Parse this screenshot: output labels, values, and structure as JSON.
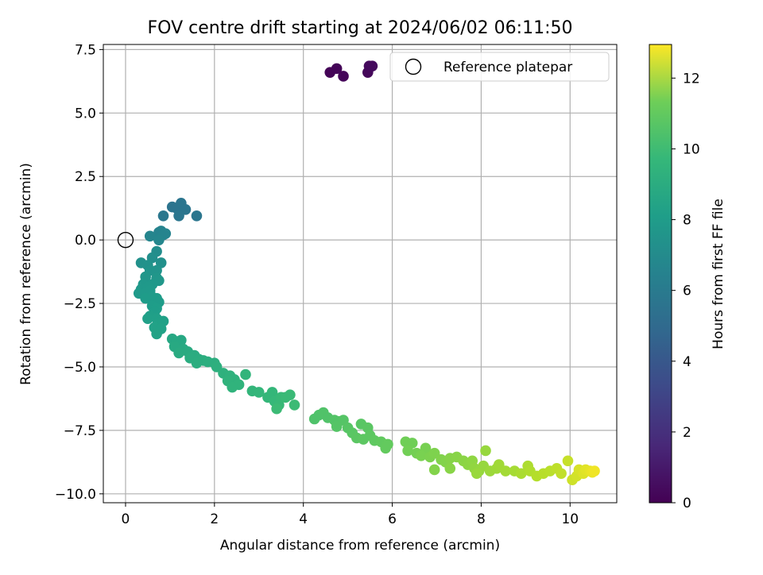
{
  "chart_data": {
    "type": "scatter",
    "title": "FOV centre drift starting at 2024/06/02 06:11:50",
    "xlabel": "Angular distance from reference (arcmin)",
    "ylabel": "Rotation from reference (arcmin)",
    "xlim": [
      -0.5,
      11.05
    ],
    "ylim": [
      -10.35,
      7.7
    ],
    "xticks": [
      0,
      2,
      4,
      6,
      8,
      10
    ],
    "xtick_labels": [
      "0",
      "2",
      "4",
      "6",
      "8",
      "10"
    ],
    "yticks": [
      -10.0,
      -7.5,
      -5.0,
      -2.5,
      0.0,
      2.5,
      5.0,
      7.5
    ],
    "ytick_labels": [
      "−10.0",
      "−7.5",
      "−5.0",
      "−2.5",
      "0.0",
      "2.5",
      "5.0",
      "7.5"
    ],
    "grid": true,
    "legend": {
      "placement": "top-right",
      "entries": [
        "Reference platepar"
      ]
    },
    "reference_point": {
      "x": 0,
      "y": 0,
      "label": "Reference platepar"
    },
    "colorbar": {
      "label": "Hours from first FF file",
      "colormap": "viridis",
      "range": [
        0,
        12.95
      ],
      "ticks": [
        0,
        2,
        4,
        6,
        8,
        10,
        12
      ],
      "tick_labels": [
        "0",
        "2",
        "4",
        "6",
        "8",
        "10",
        "12"
      ]
    },
    "points": [
      {
        "x": 4.6,
        "y": 6.6,
        "t": 0.1
      },
      {
        "x": 4.75,
        "y": 6.75,
        "t": 0.15
      },
      {
        "x": 4.9,
        "y": 6.45,
        "t": 0.2
      },
      {
        "x": 5.45,
        "y": 6.6,
        "t": 0.25
      },
      {
        "x": 5.48,
        "y": 6.85,
        "t": 0.3
      },
      {
        "x": 5.55,
        "y": 6.85,
        "t": 0.35
      },
      {
        "x": 1.05,
        "y": 1.3,
        "t": 5.0
      },
      {
        "x": 1.15,
        "y": 1.25,
        "t": 5.0
      },
      {
        "x": 1.25,
        "y": 1.45,
        "t": 5.05
      },
      {
        "x": 1.35,
        "y": 1.2,
        "t": 5.05
      },
      {
        "x": 1.2,
        "y": 0.95,
        "t": 5.1
      },
      {
        "x": 1.6,
        "y": 0.95,
        "t": 5.1
      },
      {
        "x": 0.85,
        "y": 0.95,
        "t": 5.15
      },
      {
        "x": 0.75,
        "y": 0.3,
        "t": 5.8
      },
      {
        "x": 0.8,
        "y": 0.35,
        "t": 5.8
      },
      {
        "x": 0.85,
        "y": 0.2,
        "t": 5.85
      },
      {
        "x": 0.9,
        "y": 0.25,
        "t": 5.85
      },
      {
        "x": 0.55,
        "y": 0.15,
        "t": 5.9
      },
      {
        "x": 0.75,
        "y": 0.0,
        "t": 5.95
      },
      {
        "x": 0.7,
        "y": -0.45,
        "t": 6.3
      },
      {
        "x": 0.6,
        "y": -0.7,
        "t": 6.4
      },
      {
        "x": 0.8,
        "y": -0.9,
        "t": 6.5
      },
      {
        "x": 0.35,
        "y": -0.9,
        "t": 6.55
      },
      {
        "x": 0.5,
        "y": -1.0,
        "t": 6.6
      },
      {
        "x": 0.55,
        "y": -1.2,
        "t": 6.7
      },
      {
        "x": 0.7,
        "y": -1.2,
        "t": 6.7
      },
      {
        "x": 0.45,
        "y": -1.45,
        "t": 6.8
      },
      {
        "x": 0.7,
        "y": -1.5,
        "t": 6.8
      },
      {
        "x": 0.75,
        "y": -1.6,
        "t": 6.85
      },
      {
        "x": 0.4,
        "y": -1.75,
        "t": 6.9
      },
      {
        "x": 0.6,
        "y": -1.75,
        "t": 6.9
      },
      {
        "x": 0.35,
        "y": -1.95,
        "t": 6.95
      },
      {
        "x": 0.5,
        "y": -1.85,
        "t": 6.95
      },
      {
        "x": 0.3,
        "y": -2.1,
        "t": 7.0
      },
      {
        "x": 0.45,
        "y": -2.1,
        "t": 7.0
      },
      {
        "x": 0.55,
        "y": -2.0,
        "t": 7.0
      },
      {
        "x": 0.6,
        "y": -2.25,
        "t": 7.05
      },
      {
        "x": 0.7,
        "y": -2.3,
        "t": 7.1
      },
      {
        "x": 0.75,
        "y": -2.45,
        "t": 7.1
      },
      {
        "x": 0.45,
        "y": -2.3,
        "t": 7.1
      },
      {
        "x": 0.6,
        "y": -2.6,
        "t": 7.15
      },
      {
        "x": 0.7,
        "y": -2.7,
        "t": 7.2
      },
      {
        "x": 0.65,
        "y": -2.85,
        "t": 7.2
      },
      {
        "x": 0.55,
        "y": -3.0,
        "t": 7.25
      },
      {
        "x": 0.5,
        "y": -3.1,
        "t": 7.3
      },
      {
        "x": 0.7,
        "y": -3.1,
        "t": 7.3
      },
      {
        "x": 0.75,
        "y": -3.25,
        "t": 7.35
      },
      {
        "x": 0.85,
        "y": -3.2,
        "t": 7.35
      },
      {
        "x": 0.65,
        "y": -3.45,
        "t": 7.4
      },
      {
        "x": 0.8,
        "y": -3.5,
        "t": 7.4
      },
      {
        "x": 0.7,
        "y": -3.7,
        "t": 7.45
      },
      {
        "x": 1.05,
        "y": -3.9,
        "t": 7.7
      },
      {
        "x": 1.15,
        "y": -4.0,
        "t": 7.75
      },
      {
        "x": 1.25,
        "y": -3.95,
        "t": 7.75
      },
      {
        "x": 1.1,
        "y": -4.2,
        "t": 7.8
      },
      {
        "x": 1.3,
        "y": -4.3,
        "t": 7.85
      },
      {
        "x": 1.2,
        "y": -4.45,
        "t": 7.9
      },
      {
        "x": 1.4,
        "y": -4.4,
        "t": 7.9
      },
      {
        "x": 1.55,
        "y": -4.55,
        "t": 7.95
      },
      {
        "x": 1.45,
        "y": -4.65,
        "t": 8.0
      },
      {
        "x": 1.65,
        "y": -4.7,
        "t": 8.0
      },
      {
        "x": 1.6,
        "y": -4.85,
        "t": 8.05
      },
      {
        "x": 1.75,
        "y": -4.75,
        "t": 8.05
      },
      {
        "x": 1.85,
        "y": -4.8,
        "t": 8.1
      },
      {
        "x": 2.0,
        "y": -4.85,
        "t": 8.1
      },
      {
        "x": 2.05,
        "y": -5.0,
        "t": 8.15
      },
      {
        "x": 2.2,
        "y": -5.25,
        "t": 8.25
      },
      {
        "x": 2.35,
        "y": -5.35,
        "t": 8.3
      },
      {
        "x": 2.45,
        "y": -5.5,
        "t": 8.3
      },
      {
        "x": 2.3,
        "y": -5.55,
        "t": 8.35
      },
      {
        "x": 2.55,
        "y": -5.7,
        "t": 8.4
      },
      {
        "x": 2.4,
        "y": -5.8,
        "t": 8.4
      },
      {
        "x": 2.7,
        "y": -5.3,
        "t": 8.45
      },
      {
        "x": 2.85,
        "y": -5.95,
        "t": 8.5
      },
      {
        "x": 3.0,
        "y": -6.0,
        "t": 8.55
      },
      {
        "x": 3.2,
        "y": -6.2,
        "t": 8.6
      },
      {
        "x": 3.3,
        "y": -6.0,
        "t": 8.6
      },
      {
        "x": 3.35,
        "y": -6.35,
        "t": 8.65
      },
      {
        "x": 3.45,
        "y": -6.5,
        "t": 8.7
      },
      {
        "x": 3.5,
        "y": -6.2,
        "t": 8.7
      },
      {
        "x": 3.6,
        "y": -6.2,
        "t": 8.75
      },
      {
        "x": 3.7,
        "y": -6.1,
        "t": 8.75
      },
      {
        "x": 3.8,
        "y": -6.5,
        "t": 8.8
      },
      {
        "x": 3.4,
        "y": -6.65,
        "t": 8.8
      },
      {
        "x": 4.25,
        "y": -7.05,
        "t": 9.3
      },
      {
        "x": 4.35,
        "y": -6.9,
        "t": 9.3
      },
      {
        "x": 4.45,
        "y": -6.8,
        "t": 9.35
      },
      {
        "x": 4.55,
        "y": -7.0,
        "t": 9.35
      },
      {
        "x": 4.7,
        "y": -7.1,
        "t": 9.4
      },
      {
        "x": 4.8,
        "y": -7.15,
        "t": 9.4
      },
      {
        "x": 4.9,
        "y": -7.1,
        "t": 9.45
      },
      {
        "x": 4.75,
        "y": -7.35,
        "t": 9.45
      },
      {
        "x": 5.0,
        "y": -7.4,
        "t": 9.5
      },
      {
        "x": 5.1,
        "y": -7.6,
        "t": 9.55
      },
      {
        "x": 5.3,
        "y": -7.25,
        "t": 9.55
      },
      {
        "x": 5.45,
        "y": -7.4,
        "t": 9.6
      },
      {
        "x": 5.2,
        "y": -7.8,
        "t": 9.6
      },
      {
        "x": 5.35,
        "y": -7.85,
        "t": 9.65
      },
      {
        "x": 5.5,
        "y": -7.7,
        "t": 9.65
      },
      {
        "x": 5.6,
        "y": -7.9,
        "t": 9.7
      },
      {
        "x": 5.75,
        "y": -7.95,
        "t": 9.75
      },
      {
        "x": 5.9,
        "y": -8.05,
        "t": 9.8
      },
      {
        "x": 5.85,
        "y": -8.2,
        "t": 9.8
      },
      {
        "x": 6.3,
        "y": -7.95,
        "t": 10.1
      },
      {
        "x": 6.45,
        "y": -8.0,
        "t": 10.1
      },
      {
        "x": 6.35,
        "y": -8.3,
        "t": 10.15
      },
      {
        "x": 6.55,
        "y": -8.4,
        "t": 10.2
      },
      {
        "x": 6.75,
        "y": -8.2,
        "t": 10.25
      },
      {
        "x": 6.65,
        "y": -8.5,
        "t": 10.3
      },
      {
        "x": 6.85,
        "y": -8.55,
        "t": 10.35
      },
      {
        "x": 6.95,
        "y": -8.4,
        "t": 10.4
      },
      {
        "x": 7.1,
        "y": -8.65,
        "t": 10.45
      },
      {
        "x": 6.95,
        "y": -9.05,
        "t": 10.5
      },
      {
        "x": 7.2,
        "y": -8.75,
        "t": 10.5
      },
      {
        "x": 7.3,
        "y": -8.6,
        "t": 10.55
      },
      {
        "x": 7.45,
        "y": -8.55,
        "t": 10.6
      },
      {
        "x": 7.3,
        "y": -9.0,
        "t": 10.6
      },
      {
        "x": 7.6,
        "y": -8.7,
        "t": 10.65
      },
      {
        "x": 7.7,
        "y": -8.85,
        "t": 10.7
      },
      {
        "x": 7.8,
        "y": -8.7,
        "t": 10.75
      },
      {
        "x": 7.85,
        "y": -9.0,
        "t": 10.8
      },
      {
        "x": 7.95,
        "y": -9.1,
        "t": 10.85
      },
      {
        "x": 8.05,
        "y": -8.9,
        "t": 10.9
      },
      {
        "x": 8.1,
        "y": -8.3,
        "t": 10.9
      },
      {
        "x": 7.9,
        "y": -9.2,
        "t": 10.95
      },
      {
        "x": 8.2,
        "y": -9.1,
        "t": 11.0
      },
      {
        "x": 8.35,
        "y": -9.0,
        "t": 11.05
      },
      {
        "x": 8.4,
        "y": -8.85,
        "t": 11.1
      },
      {
        "x": 8.55,
        "y": -9.1,
        "t": 11.15
      },
      {
        "x": 8.75,
        "y": -9.1,
        "t": 11.2
      },
      {
        "x": 8.9,
        "y": -9.2,
        "t": 11.3
      },
      {
        "x": 9.05,
        "y": -8.9,
        "t": 11.35
      },
      {
        "x": 9.1,
        "y": -9.1,
        "t": 11.4
      },
      {
        "x": 9.25,
        "y": -9.3,
        "t": 11.5
      },
      {
        "x": 9.4,
        "y": -9.2,
        "t": 11.55
      },
      {
        "x": 9.55,
        "y": -9.1,
        "t": 11.6
      },
      {
        "x": 9.7,
        "y": -9.0,
        "t": 11.7
      },
      {
        "x": 9.8,
        "y": -9.2,
        "t": 11.75
      },
      {
        "x": 9.95,
        "y": -8.7,
        "t": 11.85
      },
      {
        "x": 10.05,
        "y": -9.45,
        "t": 12.0
      },
      {
        "x": 10.15,
        "y": -9.3,
        "t": 12.1
      },
      {
        "x": 10.2,
        "y": -9.05,
        "t": 12.2
      },
      {
        "x": 10.3,
        "y": -9.2,
        "t": 12.3
      },
      {
        "x": 10.35,
        "y": -9.05,
        "t": 12.4
      },
      {
        "x": 10.45,
        "y": -9.1,
        "t": 12.5
      },
      {
        "x": 10.5,
        "y": -9.15,
        "t": 12.6
      },
      {
        "x": 10.55,
        "y": -9.1,
        "t": 12.7
      }
    ]
  }
}
